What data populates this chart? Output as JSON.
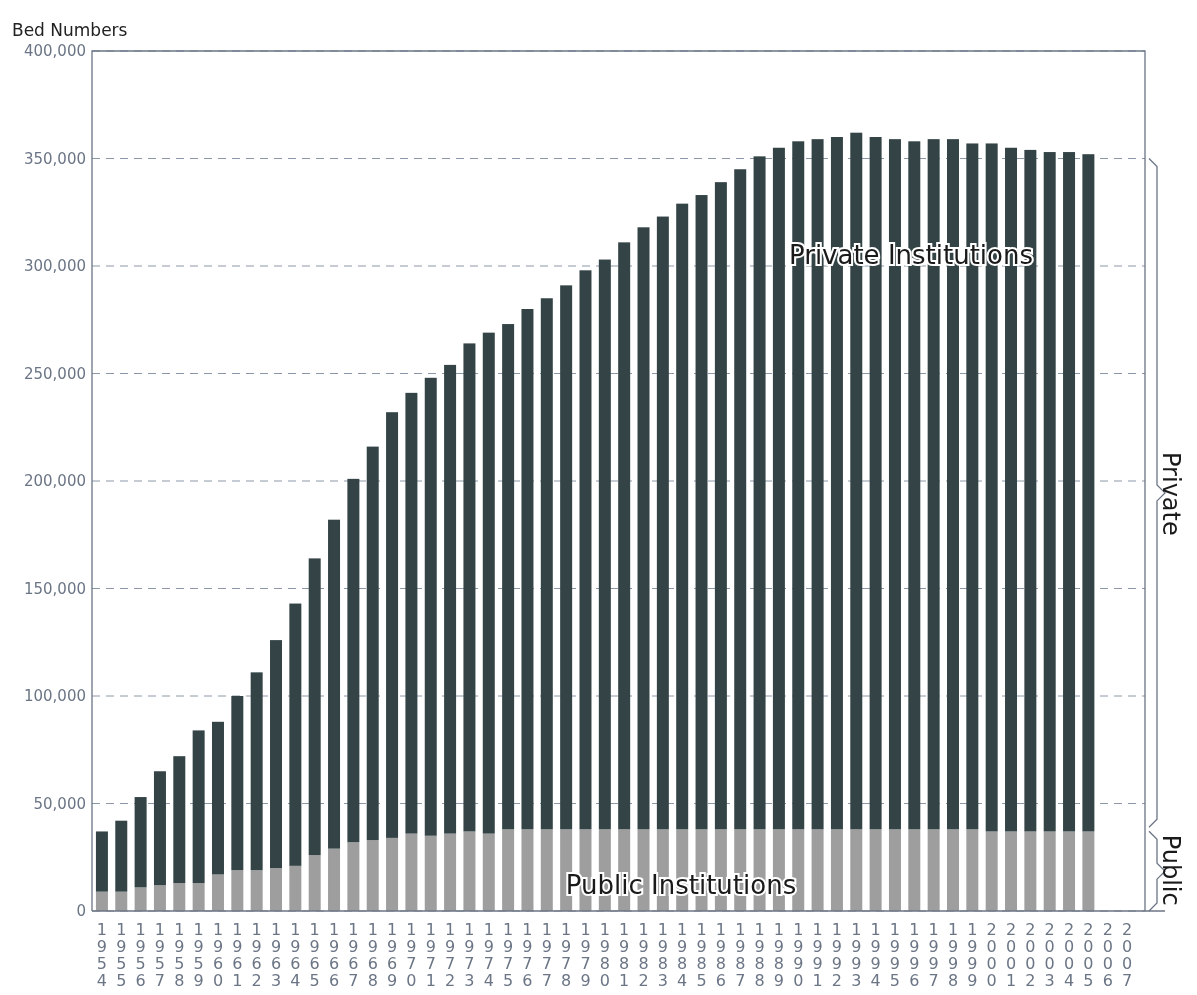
{
  "chart_data": {
    "type": "bar",
    "stacked": true,
    "ylabel": "Bed Numbers",
    "categories": [
      "1954",
      "1955",
      "1956",
      "1957",
      "1958",
      "1959",
      "1960",
      "1961",
      "1962",
      "1963",
      "1964",
      "1965",
      "1966",
      "1967",
      "1968",
      "1969",
      "1970",
      "1971",
      "1972",
      "1973",
      "1974",
      "1975",
      "1976",
      "1977",
      "1978",
      "1979",
      "1980",
      "1981",
      "1982",
      "1983",
      "1984",
      "1985",
      "1986",
      "1987",
      "1988",
      "1989",
      "1990",
      "1991",
      "1992",
      "1993",
      "1994",
      "1995",
      "1996",
      "1997",
      "1998",
      "1999",
      "2000",
      "2001",
      "2002",
      "2003",
      "2004",
      "2005",
      "2006",
      "2007"
    ],
    "series": [
      {
        "color": "#9e9e9e",
        "values": [
          9000,
          9000,
          11000,
          12000,
          13000,
          13000,
          17000,
          19000,
          19000,
          20000,
          21000,
          26000,
          29000,
          32000,
          33000,
          34000,
          36000,
          35000,
          36000,
          37000,
          36000,
          38000,
          38000,
          38000,
          38000,
          38000,
          38000,
          38000,
          38000,
          38000,
          38000,
          38000,
          38000,
          38000,
          38000,
          38000,
          38000,
          38000,
          38000,
          38000,
          38000,
          38000,
          38000,
          38000,
          38000,
          38000,
          37000,
          37000,
          37000,
          37000,
          37000,
          37000,
          null,
          null
        ]
      },
      {
        "color": "#344446",
        "values": [
          28000,
          33000,
          42000,
          53000,
          59000,
          71000,
          71000,
          81000,
          92000,
          106000,
          122000,
          138000,
          153000,
          169000,
          183000,
          198000,
          205000,
          213000,
          218000,
          227000,
          233000,
          235000,
          242000,
          247000,
          253000,
          260000,
          265000,
          273000,
          280000,
          285000,
          291000,
          295000,
          301000,
          307000,
          313000,
          317000,
          320000,
          321000,
          322000,
          324000,
          322000,
          321000,
          320000,
          321000,
          321000,
          319000,
          320000,
          318000,
          317000,
          316000,
          316000,
          315000,
          null,
          null
        ]
      }
    ],
    "ylim": [
      0,
      400000
    ],
    "yticks": [
      {
        "value": 0,
        "label": "0"
      },
      {
        "value": 50000,
        "label": "50,000"
      },
      {
        "value": 100000,
        "label": "100,000"
      },
      {
        "value": 150000,
        "label": "150,000"
      },
      {
        "value": 200000,
        "label": "200,000"
      },
      {
        "value": 250000,
        "label": "250,000"
      },
      {
        "value": 300000,
        "label": "300,000"
      },
      {
        "value": 350000,
        "label": "350,000"
      },
      {
        "value": 400000,
        "label": "400,000"
      }
    ],
    "grid": "y",
    "annotations": [
      "Private Institutions",
      "Public Institutions",
      "Private",
      "Public"
    ]
  }
}
